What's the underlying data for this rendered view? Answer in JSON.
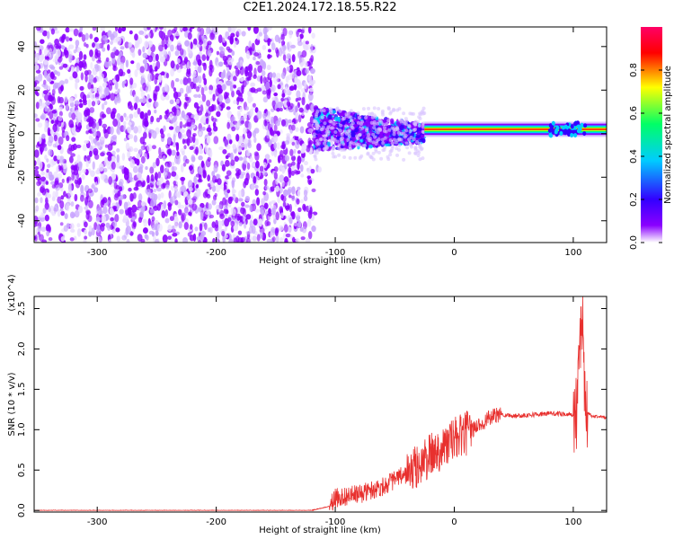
{
  "title": "C2E1.2024.172.18.55.R22",
  "chart_data": [
    {
      "type": "heatmap",
      "xlabel": "Height of straight line (km)",
      "ylabel": "Frequency (Hz)",
      "xlim": [
        -353,
        128
      ],
      "ylim": [
        -50,
        49
      ],
      "xticks": [
        -300,
        -200,
        -100,
        0,
        100
      ],
      "yticks": [
        -40,
        -20,
        0,
        20,
        40
      ],
      "grid": false,
      "colorbar": {
        "label": "Normalized spectral amplitude",
        "range": [
          0.0,
          1.0
        ],
        "ticks": [
          0.0,
          0.2,
          0.4,
          0.6,
          0.8
        ],
        "colors": [
          "#ffffff",
          "#8a00ff",
          "#3300ff",
          "#00ccff",
          "#00ff66",
          "#ffff00",
          "#ff0000",
          "#ff0066"
        ]
      },
      "regions": [
        {
          "x_range": [
            -353,
            -118
          ],
          "freq_range": [
            -50,
            49
          ],
          "amplitude": 0.1,
          "note": "broadband low-amplitude noise"
        },
        {
          "x_range": [
            -118,
            -25
          ],
          "freq_range": [
            -8,
            12
          ],
          "amplitude": 0.35
        },
        {
          "x_range": [
            -25,
            128
          ],
          "freq_range": [
            -1,
            4
          ],
          "amplitude": 0.9,
          "center_frequency": 2
        }
      ]
    },
    {
      "type": "line",
      "xlabel": "Height of straight line (km)",
      "ylabel": "SNR (10 * v/v)",
      "yscale_label": "(x10^4)",
      "xlim": [
        -353,
        128
      ],
      "ylim": [
        -0.02,
        2.65
      ],
      "xticks": [
        -300,
        -200,
        -100,
        0,
        100
      ],
      "yticks": [
        0.0,
        0.5,
        1.0,
        1.5,
        2.0,
        2.5
      ],
      "grid": false,
      "series": [
        {
          "color": "#e8302e",
          "x": [
            -353,
            -300,
            -200,
            -120,
            -105,
            -100,
            -90,
            -80,
            -70,
            -60,
            -50,
            -40,
            -30,
            -20,
            -10,
            0,
            10,
            20,
            30,
            40,
            50,
            60,
            70,
            80,
            90,
            100,
            104,
            107,
            110,
            115,
            128
          ],
          "y": [
            0.0,
            0.0,
            0.0,
            0.0,
            0.05,
            0.15,
            0.18,
            0.2,
            0.25,
            0.3,
            0.38,
            0.45,
            0.55,
            0.68,
            0.78,
            0.88,
            0.95,
            1.05,
            1.15,
            1.19,
            1.17,
            1.18,
            1.19,
            1.2,
            1.2,
            1.18,
            1.3,
            2.65,
            1.25,
            1.17,
            1.15
          ]
        }
      ]
    }
  ]
}
